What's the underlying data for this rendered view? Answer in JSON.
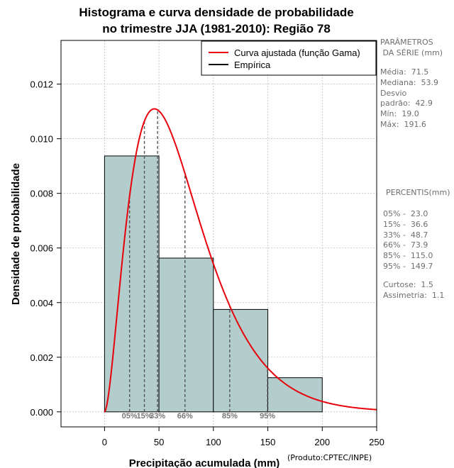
{
  "chart_data": {
    "type": "bar",
    "title_line1": "Histograma e curva densidade de probabilidade",
    "title_line2": "no trimestre JJA (1981-2010): Região 78",
    "xlabel": "Precipitação acumulada (mm)",
    "ylabel": "Densidade de probabilidade",
    "credit": "(Produto:CPTEC/INPE)",
    "xlim": [
      -40,
      250
    ],
    "ylim": [
      -0.00055,
      0.0136
    ],
    "grid": true,
    "xticks": [
      0,
      50,
      100,
      150,
      200,
      250
    ],
    "yticks": [
      0.0,
      0.002,
      0.004,
      0.006,
      0.008,
      0.01,
      0.012
    ],
    "ytick_labels": [
      "0.000",
      "0.002",
      "0.004",
      "0.006",
      "0.008",
      "0.010",
      "0.012"
    ],
    "bins": [
      {
        "x0": 0,
        "x1": 50,
        "density": 0.00937
      },
      {
        "x0": 50,
        "x1": 100,
        "density": 0.00563
      },
      {
        "x0": 100,
        "x1": 150,
        "density": 0.00375
      },
      {
        "x0": 150,
        "x1": 200,
        "density": 0.00125
      }
    ],
    "gamma": {
      "shape": 2.78,
      "scale": 25.73
    },
    "percentile_lines": [
      {
        "label": "05%",
        "x": 23.0
      },
      {
        "label": "15%",
        "x": 36.6
      },
      {
        "label": "33%",
        "x": 48.7
      },
      {
        "label": "66%",
        "x": 73.9
      },
      {
        "label": "85%",
        "x": 115.0
      },
      {
        "label": "95%",
        "x": 149.7
      }
    ],
    "legend": [
      {
        "label": "Curva ajustada (função Gama)",
        "color": "#e8000b"
      },
      {
        "label": "Empírica",
        "color": "#000000"
      }
    ],
    "legend_position": "top-right",
    "colors": {
      "bar_fill": "#b3cccc",
      "curve": "#e8000b",
      "grid": "#bdbdbd",
      "percentile": "#555555"
    }
  },
  "side_panel": {
    "params_header": "PARÂMETROS\n DA SÉRIE (mm)",
    "stats": "Média:  71.5\nMediana:  53.9\nDesvio\npadrão:  42.9\nMín:  19.0\nMáx:  191.6",
    "percentis_header": "PERCENTIS(mm)",
    "percentis": "05% -  23.0\n15% -  36.6\n33% -  48.7\n66% -  73.9\n85% -  115.0\n95% -  149.7",
    "shape": "Curtose:  1.5\nAssimetria:  1.1"
  }
}
